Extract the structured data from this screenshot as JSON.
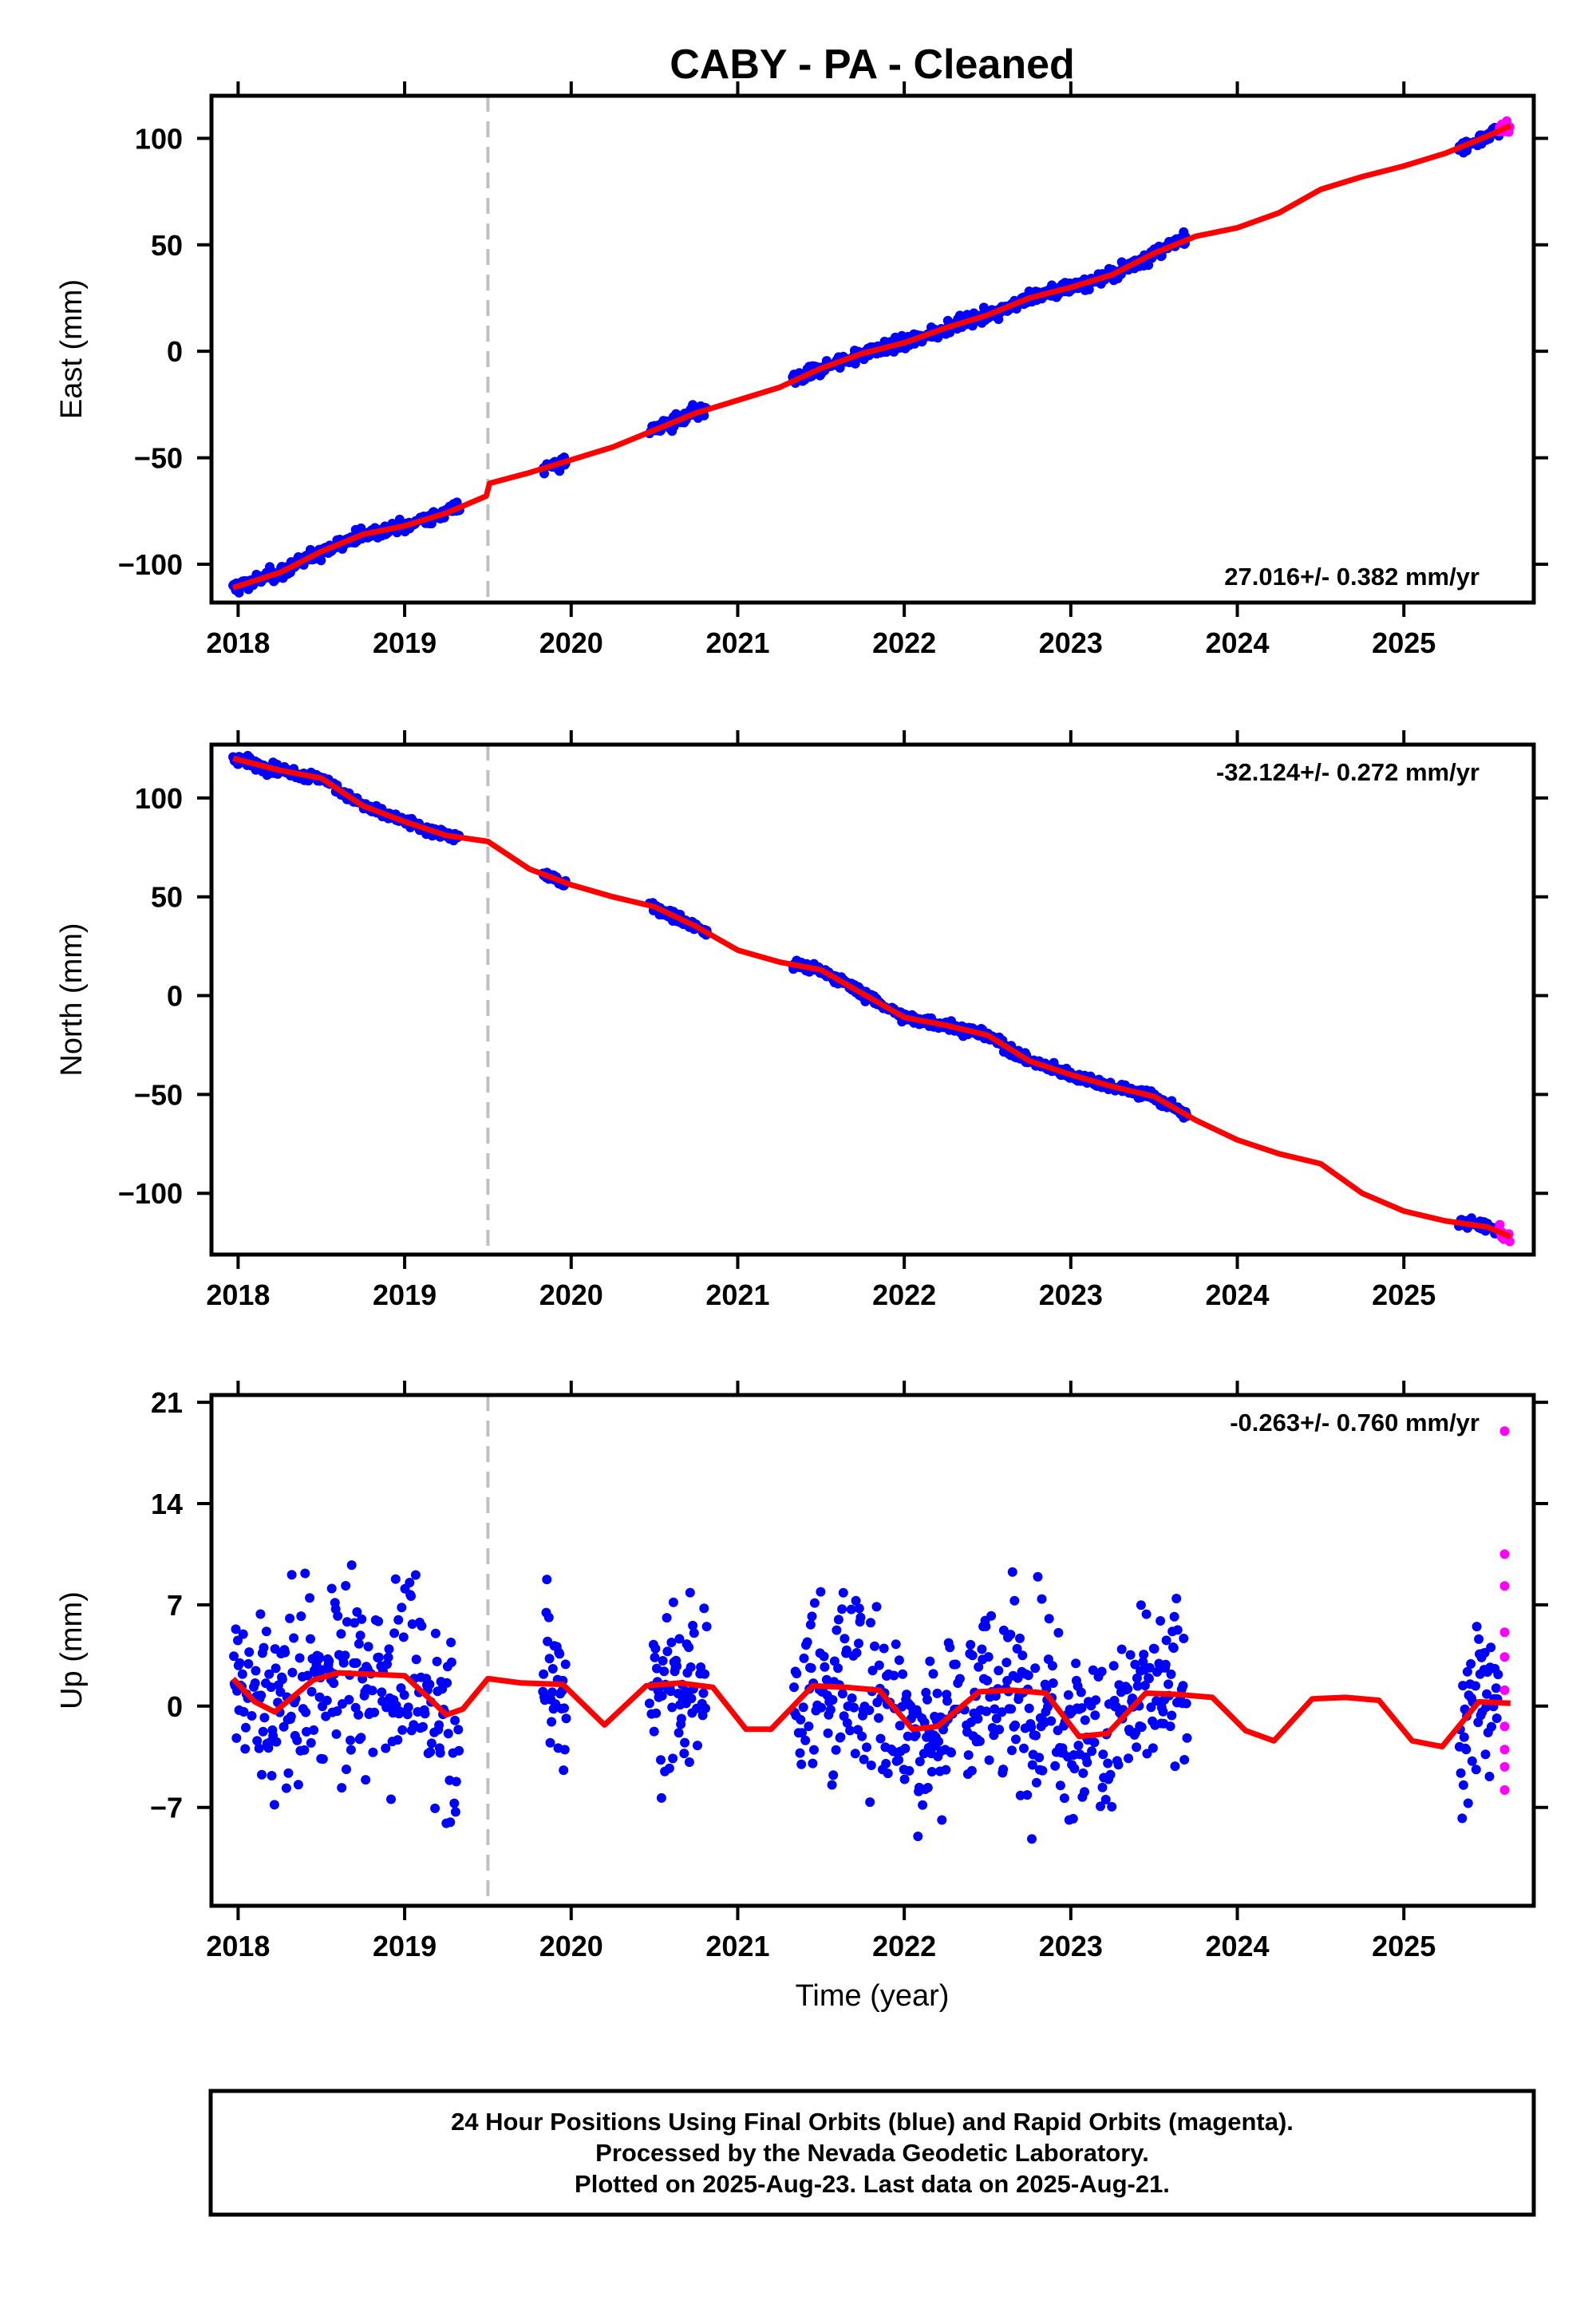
{
  "title": "CABY  - PA - Cleaned",
  "xlabel": "Time (year)",
  "footer": [
    "24 Hour Positions Using Final Orbits (blue) and Rapid Orbits (magenta).",
    "Processed by the Nevada Geodetic Laboratory.",
    "Plotted on 2025-Aug-23. Last data on 2025-Aug-21."
  ],
  "colors": {
    "final": "#0000ff",
    "rapid": "#ff00ff",
    "model": "#ff0000",
    "break_line": "#c0c0c0",
    "axes": "#000000"
  },
  "chart_data": [
    {
      "type": "scatter",
      "component": "east",
      "ylabel": "East (mm)",
      "rate_text": "27.016+/- 0.382 mm/yr",
      "xlim": [
        2017.84,
        2025.78
      ],
      "ylim": [
        -118,
        120
      ],
      "xticks": [
        2018,
        2019,
        2020,
        2021,
        2022,
        2023,
        2024,
        2025
      ],
      "yticks": [
        -100,
        -50,
        0,
        50,
        100
      ],
      "yticklabels": [
        "−100",
        "−50",
        "0",
        "50",
        "100"
      ],
      "break_year": 2019.5,
      "final_segments": [
        [
          2017.97,
          2019.33
        ],
        [
          2019.83,
          2019.97
        ],
        [
          2020.47,
          2020.82
        ],
        [
          2021.33,
          2023.7
        ],
        [
          2025.33,
          2025.57
        ]
      ],
      "rapid_segment": [
        2025.57,
        2025.64
      ],
      "model": {
        "x": [
          2017.97,
          2018.25,
          2018.5,
          2018.75,
          2019.0,
          2019.25,
          2019.49,
          2019.51,
          2019.75,
          2020.0,
          2020.25,
          2020.5,
          2020.75,
          2021.0,
          2021.25,
          2021.5,
          2021.75,
          2022.0,
          2022.25,
          2022.5,
          2022.75,
          2023.0,
          2023.25,
          2023.5,
          2023.75,
          2024.0,
          2024.25,
          2024.5,
          2024.75,
          2025.0,
          2025.25,
          2025.5,
          2025.64
        ],
        "y": [
          -111,
          -104,
          -94,
          -86,
          -82,
          -76,
          -68,
          -62,
          -57,
          -51,
          -45,
          -37,
          -29,
          -23,
          -17,
          -8,
          -1,
          4,
          11,
          17,
          25,
          30,
          36,
          46,
          54,
          58,
          65,
          76,
          82,
          87,
          93,
          101,
          106
        ]
      },
      "scatter_amp": 2.2
    },
    {
      "type": "scatter",
      "component": "north",
      "ylabel": "North (mm)",
      "rate_text": "-32.124+/- 0.272 mm/yr",
      "xlim": [
        2017.84,
        2025.78
      ],
      "ylim": [
        -131,
        127
      ],
      "xticks": [
        2018,
        2019,
        2020,
        2021,
        2022,
        2023,
        2024,
        2025
      ],
      "yticks": [
        -100,
        -50,
        0,
        50,
        100
      ],
      "yticklabels": [
        "−100",
        "−50",
        "0",
        "50",
        "100"
      ],
      "break_year": 2019.5,
      "final_segments": [
        [
          2017.97,
          2019.33
        ],
        [
          2019.83,
          2019.97
        ],
        [
          2020.47,
          2020.82
        ],
        [
          2021.33,
          2023.7
        ],
        [
          2025.33,
          2025.57
        ]
      ],
      "rapid_segment": [
        2025.57,
        2025.64
      ],
      "model": {
        "x": [
          2017.97,
          2018.25,
          2018.5,
          2018.75,
          2019.0,
          2019.25,
          2019.5,
          2019.75,
          2020.0,
          2020.25,
          2020.5,
          2020.75,
          2021.0,
          2021.25,
          2021.5,
          2021.75,
          2022.0,
          2022.25,
          2022.5,
          2022.75,
          2023.0,
          2023.25,
          2023.5,
          2023.75,
          2024.0,
          2024.25,
          2024.5,
          2024.75,
          2025.0,
          2025.25,
          2025.5,
          2025.64
        ],
        "y": [
          120,
          114,
          110,
          96,
          88,
          81,
          78,
          64,
          56,
          50,
          45,
          35,
          23,
          17,
          13,
          1,
          -11,
          -15,
          -20,
          -33,
          -40,
          -46,
          -51,
          -63,
          -73,
          -80,
          -85,
          -100,
          -109,
          -114,
          -117,
          -122
        ]
      },
      "scatter_amp": 1.8
    },
    {
      "type": "scatter",
      "component": "up",
      "ylabel": "Up (mm)",
      "rate_text": "-0.263+/- 0.760 mm/yr",
      "xlim": [
        2017.84,
        2025.78
      ],
      "ylim": [
        -13.8,
        21.5
      ],
      "xticks": [
        2018,
        2019,
        2020,
        2021,
        2022,
        2023,
        2024,
        2025
      ],
      "yticks": [
        -7,
        0,
        7,
        14,
        21
      ],
      "yticklabels": [
        "−7",
        "0",
        "7",
        "14",
        "21"
      ],
      "break_year": 2019.5,
      "final_segments": [
        [
          2017.97,
          2019.33
        ],
        [
          2019.83,
          2019.97
        ],
        [
          2020.47,
          2020.82
        ],
        [
          2021.33,
          2023.7
        ],
        [
          2025.33,
          2025.57
        ]
      ],
      "rapid_segment": [
        2025.57,
        2025.64
      ],
      "model": {
        "x": [
          2017.97,
          2018.1,
          2018.22,
          2018.45,
          2018.6,
          2018.8,
          2019.0,
          2019.15,
          2019.25,
          2019.35,
          2019.5,
          2019.7,
          2019.95,
          2020.2,
          2020.45,
          2020.65,
          2020.85,
          2021.05,
          2021.2,
          2021.45,
          2021.65,
          2021.85,
          2022.05,
          2022.2,
          2022.45,
          2022.65,
          2022.85,
          2023.05,
          2023.22,
          2023.45,
          2023.65,
          2023.85,
          2024.05,
          2024.22,
          2024.45,
          2024.65,
          2024.85,
          2025.05,
          2025.23,
          2025.45,
          2025.64
        ],
        "y": [
          1.9,
          0.3,
          -0.4,
          1.8,
          2.3,
          2.2,
          2.1,
          0.5,
          -0.6,
          -0.2,
          1.9,
          1.6,
          1.5,
          -1.3,
          1.4,
          1.6,
          1.3,
          -1.6,
          -1.6,
          1.4,
          1.3,
          1.1,
          -1.6,
          -1.4,
          1.0,
          1.1,
          0.9,
          -2.1,
          -1.9,
          0.9,
          0.8,
          0.6,
          -1.7,
          -2.4,
          0.5,
          0.6,
          0.4,
          -2.4,
          -2.8,
          0.3,
          0.2
        ]
      },
      "scatter_amp": 4.5,
      "rapid_values": [
        19.0,
        10.5,
        8.3,
        5.1,
        3.4,
        1.1,
        -1.4,
        -3.0,
        -4.2,
        -5.8
      ]
    }
  ]
}
